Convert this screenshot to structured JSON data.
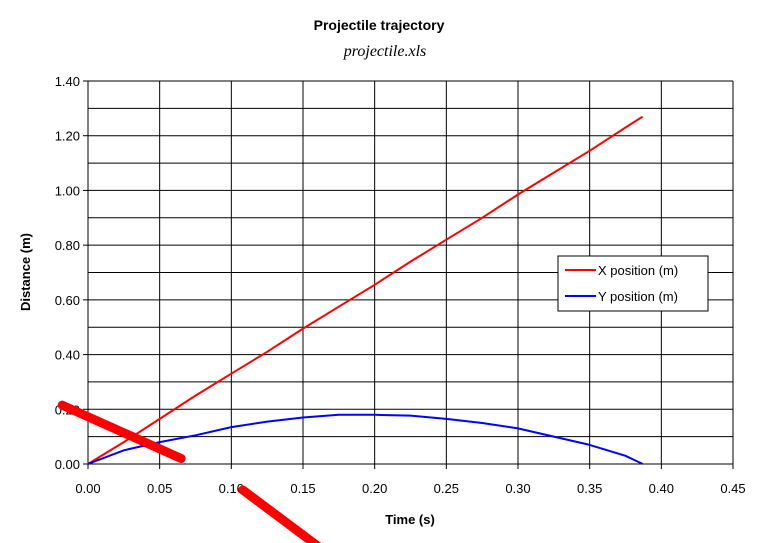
{
  "chart_data": {
    "type": "line",
    "title": "Projectile trajectory",
    "subtitle": "projectile.xls",
    "xlabel": "Time (s)",
    "ylabel": "Distance (m)",
    "xlim": [
      0,
      0.45
    ],
    "ylim": [
      0,
      1.4
    ],
    "x_ticks": [
      "0.00",
      "0.05",
      "0.10",
      "0.15",
      "0.20",
      "0.25",
      "0.30",
      "0.35",
      "0.40",
      "0.45"
    ],
    "y_ticks": [
      "0.00",
      "0.20",
      "0.40",
      "0.60",
      "0.80",
      "1.00",
      "1.20",
      "1.40"
    ],
    "grid": true,
    "legend_position": "right",
    "series": [
      {
        "name": "X position (m)",
        "color": "#ff0000",
        "x": [
          0,
          0.025,
          0.05,
          0.075,
          0.1,
          0.125,
          0.15,
          0.175,
          0.2,
          0.225,
          0.25,
          0.275,
          0.3,
          0.325,
          0.35,
          0.375,
          0.387
        ],
        "y": [
          0,
          0.08,
          0.165,
          0.25,
          0.33,
          0.41,
          0.495,
          0.575,
          0.655,
          0.74,
          0.82,
          0.9,
          0.985,
          1.065,
          1.145,
          1.23,
          1.27
        ]
      },
      {
        "name": "Y position (m)",
        "color": "#0000ff",
        "x": [
          0,
          0.025,
          0.05,
          0.075,
          0.1,
          0.125,
          0.15,
          0.175,
          0.2,
          0.225,
          0.25,
          0.275,
          0.3,
          0.325,
          0.35,
          0.375,
          0.387
        ],
        "y": [
          0,
          0.05,
          0.08,
          0.105,
          0.135,
          0.155,
          0.17,
          0.18,
          0.18,
          0.177,
          0.165,
          0.15,
          0.13,
          0.1,
          0.07,
          0.03,
          0.0
        ]
      }
    ],
    "annotations": [
      {
        "name": "red-marker-stroke",
        "color": "#ff0000",
        "from": [
          -0.018,
          0.215
        ],
        "to": [
          0.065,
          0.02
        ]
      },
      {
        "name": "red-marker-stroke",
        "color": "#ff0000",
        "from": [
          0.108,
          -0.095
        ],
        "to": [
          0.168,
          -0.33
        ]
      }
    ]
  }
}
